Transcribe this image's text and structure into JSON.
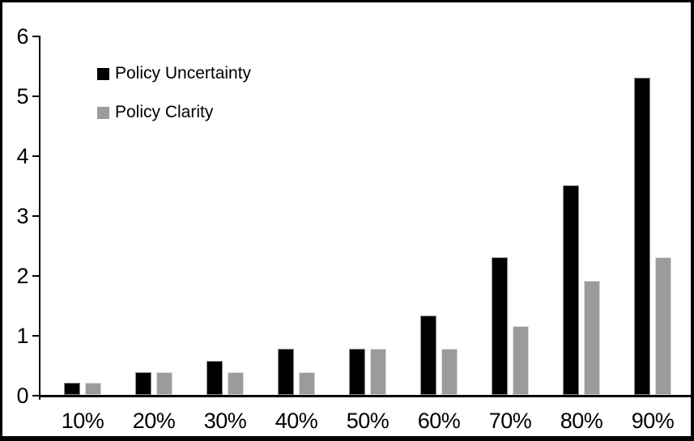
{
  "chart_data": {
    "type": "bar",
    "title": "",
    "xlabel": "",
    "ylabel": "",
    "categories": [
      "10%",
      "20%",
      "30%",
      "40%",
      "50%",
      "60%",
      "70%",
      "80%",
      "90%"
    ],
    "series": [
      {
        "name": "Policy Uncertainty",
        "color": "#000000",
        "border_color": "#8c8c8c",
        "values": [
          0.2,
          0.38,
          0.57,
          0.77,
          0.77,
          1.33,
          2.3,
          3.5,
          5.3
        ]
      },
      {
        "name": "Policy Clarity",
        "color": "#9b9b9b",
        "border_color": "#d9d9d9",
        "values": [
          0.2,
          0.38,
          0.38,
          0.38,
          0.77,
          0.77,
          1.15,
          1.9,
          2.3
        ]
      }
    ],
    "ylim": [
      0,
      6
    ],
    "yticks": [
      "0",
      "1",
      "2",
      "3",
      "4",
      "5",
      "6"
    ],
    "grid": false,
    "legend_position": "top-left",
    "axis_color": "#000000",
    "background_color": "#ffffff",
    "frame_border_color": "#000000"
  }
}
